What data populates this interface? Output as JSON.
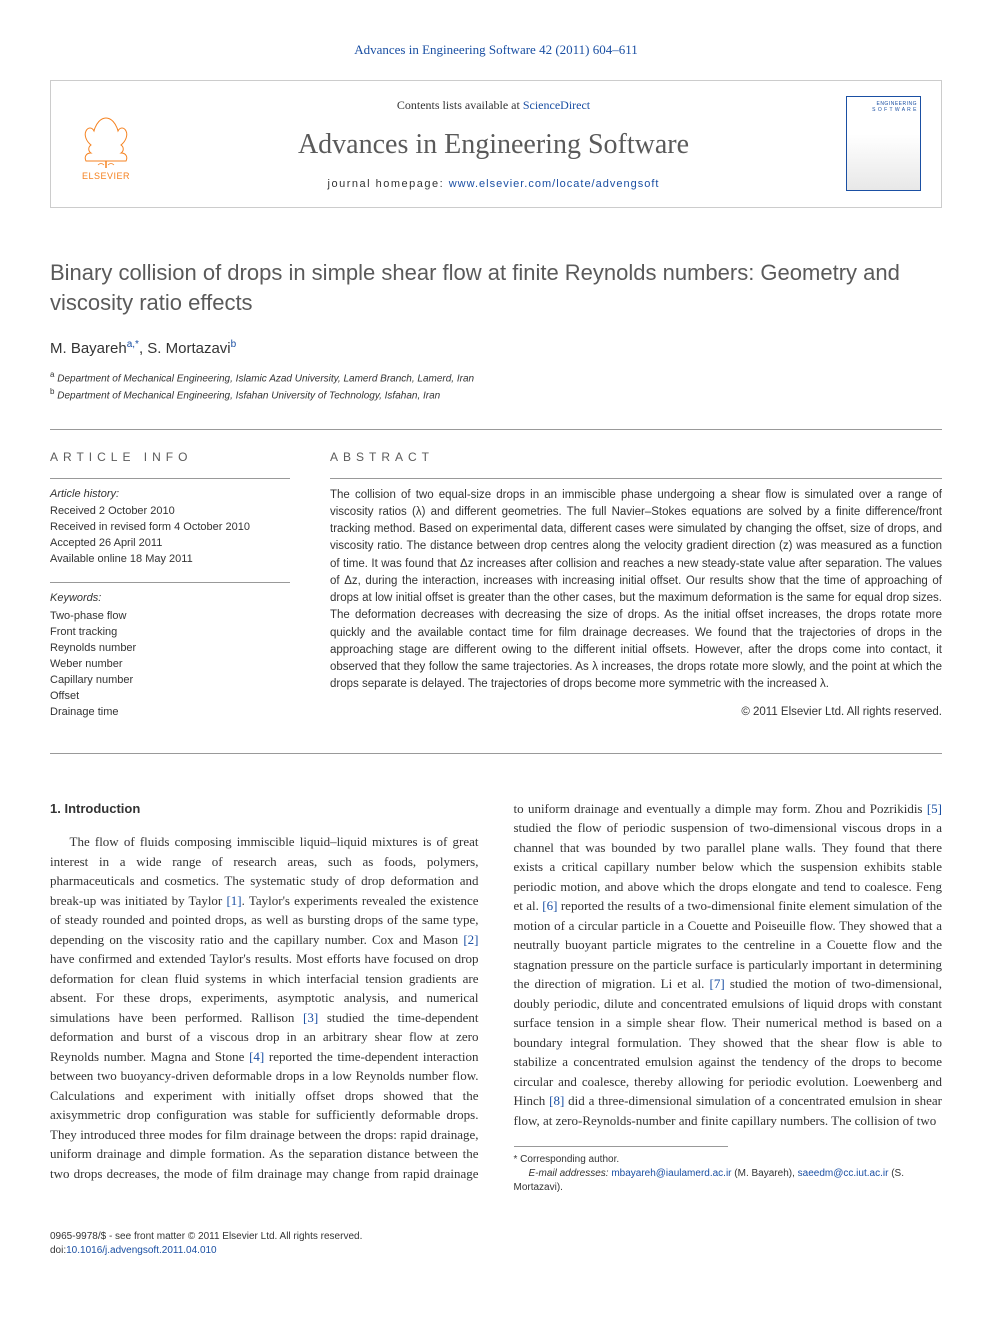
{
  "header": {
    "journal_ref": "Advances in Engineering Software 42 (2011) 604–611",
    "contents_prefix": "Contents lists available at ",
    "contents_link": "ScienceDirect",
    "journal_name": "Advances in Engineering Software",
    "homepage_prefix": "journal homepage: ",
    "homepage_url": "www.elsevier.com/locate/advengsoft",
    "elsevier_label": "ELSEVIER",
    "cover_line1": "ENGINEERING",
    "cover_line2": "S O F T W A R E"
  },
  "article": {
    "title": "Binary collision of drops in simple shear flow at finite Reynolds numbers: Geometry and viscosity ratio effects",
    "author_line_html": "M. Bayareh <sup>a,</sup>*, S. Mortazavi <sup>b</sup>",
    "authors": [
      {
        "name": "M. Bayareh",
        "marks": "a,*"
      },
      {
        "name": "S. Mortazavi",
        "marks": "b"
      }
    ],
    "affiliations": [
      {
        "mark": "a",
        "text": "Department of Mechanical Engineering, Islamic Azad University, Lamerd Branch, Lamerd, Iran"
      },
      {
        "mark": "b",
        "text": "Department of Mechanical Engineering, Isfahan University of Technology, Isfahan, Iran"
      }
    ]
  },
  "info": {
    "heading": "ARTICLE INFO",
    "history_label": "Article history:",
    "history": [
      "Received 2 October 2010",
      "Received in revised form 4 October 2010",
      "Accepted 26 April 2011",
      "Available online 18 May 2011"
    ],
    "keywords_label": "Keywords:",
    "keywords": [
      "Two-phase flow",
      "Front tracking",
      "Reynolds number",
      "Weber number",
      "Capillary number",
      "Offset",
      "Drainage time"
    ]
  },
  "abstract": {
    "heading": "ABSTRACT",
    "text": "The collision of two equal-size drops in an immiscible phase undergoing a shear flow is simulated over a range of viscosity ratios (λ) and different geometries. The full Navier–Stokes equations are solved by a finite difference/front tracking method. Based on experimental data, different cases were simulated by changing the offset, size of drops, and viscosity ratio. The distance between drop centres along the velocity gradient direction (z) was measured as a function of time. It was found that Δz increases after collision and reaches a new steady-state value after separation. The values of Δz, during the interaction, increases with increasing initial offset. Our results show that the time of approaching of drops at low initial offset is greater than the other cases, but the maximum deformation is the same for equal drop sizes. The deformation decreases with decreasing the size of drops. As the initial offset increases, the drops rotate more quickly and the available contact time for film drainage decreases. We found that the trajectories of drops in the approaching stage are different owing to the different initial offsets. However, after the drops come into contact, it observed that they follow the same trajectories. As λ increases, the drops rotate more slowly, and the point at which the drops separate is delayed. The trajectories of drops become more symmetric with the increased λ.",
    "copyright": "© 2011 Elsevier Ltd. All rights reserved."
  },
  "body": {
    "section1_heading": "1. Introduction",
    "section1_text": "The flow of fluids composing immiscible liquid–liquid mixtures is of great interest in a wide range of research areas, such as foods, polymers, pharmaceuticals and cosmetics. The systematic study of drop deformation and break-up was initiated by Taylor [1]. Taylor's experiments revealed the existence of steady rounded and pointed drops, as well as bursting drops of the same type, depending on the viscosity ratio and the capillary number. Cox and Mason [2] have confirmed and extended Taylor's results. Most efforts have focused on drop deformation for clean fluid systems in which interfacial tension gradients are absent. For these drops, experiments, asymptotic analysis, and numerical simulations have been performed. Rallison [3] studied the time-dependent deformation and burst of a viscous drop in an arbitrary shear flow at zero Reynolds number. Magna and Stone [4] reported the time-dependent interaction between two buoyancy-driven deformable drops in a low Reynolds number flow. Calculations and experiment with initially offset drops showed that the axisymmetric drop configuration was stable for sufficiently deformable drops. They introduced three modes for film drainage between the drops: rapid drainage, uniform drainage and dimple formation. As the separation distance between the two drops decreases, the mode of film drainage may change from rapid drainage to uniform drainage and eventually a dimple may form. Zhou and Pozrikidis [5] studied the flow of periodic suspension of two-dimensional viscous drops in a channel that was bounded by two parallel plane walls. They found that there exists a critical capillary number below which the suspension exhibits stable periodic motion, and above which the drops elongate and tend to coalesce. Feng et al. [6] reported the results of a two-dimensional finite element simulation of the motion of a circular particle in a Couette and Poiseuille flow. They showed that a neutrally buoyant particle migrates to the centreline in a Couette flow and the stagnation pressure on the particle surface is particularly important in determining the direction of migration. Li et al. [7] studied the motion of two-dimensional, doubly periodic, dilute and concentrated emulsions of liquid drops with constant surface tension in a simple shear flow. Their numerical method is based on a boundary integral formulation. They showed that the shear flow is able to stabilize a concentrated emulsion against the tendency of the drops to become circular and coalesce, thereby allowing for periodic evolution. Loewenberg and Hinch [8] did a three-dimensional simulation of a concentrated emulsion in shear flow, at zero-Reynolds-number and finite capillary numbers. The collision of two",
    "cite_refs": [
      "[1]",
      "[2]",
      "[3]",
      "[4]",
      "[5]",
      "[6]",
      "[7]",
      "[8]"
    ]
  },
  "footnotes": {
    "corr_label": "* Corresponding author.",
    "email_label": "E-mail addresses:",
    "emails": [
      {
        "addr": "mbayareh@iaulamerd.ac.ir",
        "who": "(M. Bayareh),"
      },
      {
        "addr": "saeedm@cc.iut.ac.ir",
        "who": "(S. Mortazavi)."
      }
    ]
  },
  "bottom": {
    "issn_line": "0965-9978/$ - see front matter © 2011 Elsevier Ltd. All rights reserved.",
    "doi_label": "doi:",
    "doi": "10.1016/j.advengsoft.2011.04.010"
  },
  "colors": {
    "link": "#1a4fa3",
    "text": "#333333",
    "heading_gray": "#5a5a5a",
    "rule": "#999999",
    "elsevier_orange": "#f58220"
  }
}
